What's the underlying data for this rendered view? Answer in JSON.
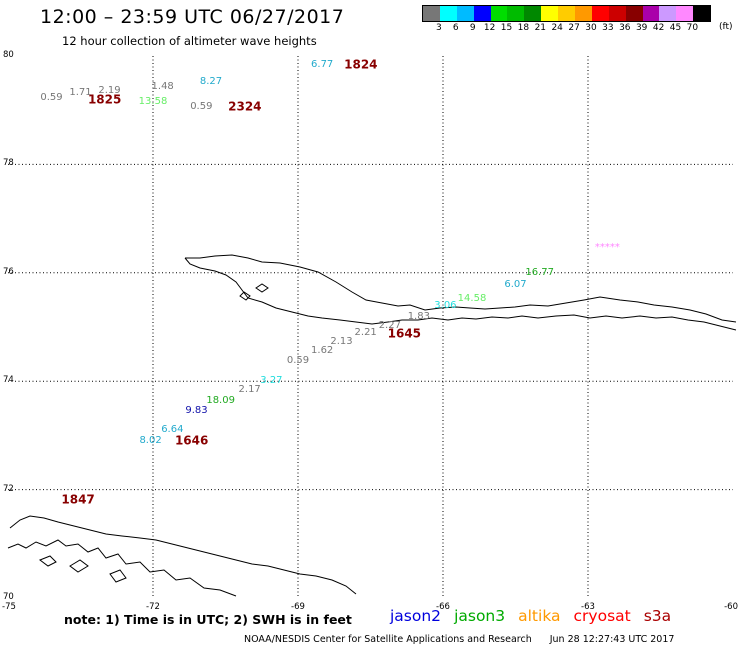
{
  "header": {
    "title": "12:00 – 23:59 UTC 06/27/2017",
    "subtitle": "12 hour collection of altimeter wave heights"
  },
  "legend": {
    "colors": [
      "#777777",
      "#00ffff",
      "#00bbff",
      "#0000ff",
      "#00dd00",
      "#00bb00",
      "#008800",
      "#ffff00",
      "#ffcc00",
      "#ff9900",
      "#ff0000",
      "#cc0000",
      "#880000",
      "#aa00aa",
      "#cc99ff",
      "#ff88ff",
      "#000000"
    ],
    "labels": [
      "3",
      "6",
      "9",
      "12",
      "15",
      "18",
      "21",
      "24",
      "27",
      "30",
      "33",
      "36",
      "39",
      "42",
      "45",
      "70"
    ],
    "unit": "(ft)"
  },
  "axes": {
    "lat_labels": [
      "80",
      "78",
      "76",
      "74",
      "72",
      "70"
    ],
    "lon_labels": [
      "-75",
      "-72",
      "-69",
      "-66",
      "-63",
      "-60"
    ]
  },
  "observations": [
    {
      "text": "6.77",
      "color": "#22aacc",
      "lon": -68.5,
      "lat": 79.83
    },
    {
      "text": "8.27",
      "color": "#22aacc",
      "lon": -70.8,
      "lat": 79.52
    },
    {
      "text": "1.48",
      "color": "#777777",
      "lon": -71.8,
      "lat": 79.42
    },
    {
      "text": "2.19",
      "color": "#777777",
      "lon": -72.9,
      "lat": 79.35
    },
    {
      "text": "1.71",
      "color": "#777777",
      "lon": -73.5,
      "lat": 79.32
    },
    {
      "text": "0.59",
      "color": "#777777",
      "lon": -74.1,
      "lat": 79.23
    },
    {
      "text": "13.58",
      "color": "#66ee66",
      "lon": -72.0,
      "lat": 79.15
    },
    {
      "text": "0.59",
      "color": "#777777",
      "lon": -71.0,
      "lat": 79.05
    },
    {
      "text": "16.77",
      "color": "#22aa22",
      "lon": -64.0,
      "lat": 76.0
    },
    {
      "text": "6.07",
      "color": "#22aacc",
      "lon": -64.5,
      "lat": 75.77
    },
    {
      "text": "14.58",
      "color": "#66ee66",
      "lon": -65.4,
      "lat": 75.52
    },
    {
      "text": "3.06",
      "color": "#22dddd",
      "lon": -65.95,
      "lat": 75.38
    },
    {
      "text": "1.83",
      "color": "#777777",
      "lon": -66.5,
      "lat": 75.18
    },
    {
      "text": "2.27",
      "color": "#777777",
      "lon": -67.1,
      "lat": 75.02
    },
    {
      "text": "2.21",
      "color": "#777777",
      "lon": -67.6,
      "lat": 74.89
    },
    {
      "text": "2.13",
      "color": "#777777",
      "lon": -68.1,
      "lat": 74.72
    },
    {
      "text": "1.62",
      "color": "#777777",
      "lon": -68.5,
      "lat": 74.55
    },
    {
      "text": "0.59",
      "color": "#777777",
      "lon": -69.0,
      "lat": 74.38
    },
    {
      "text": "3.27",
      "color": "#22dddd",
      "lon": -69.55,
      "lat": 74.0
    },
    {
      "text": "2.17",
      "color": "#777777",
      "lon": -70.0,
      "lat": 73.84
    },
    {
      "text": "18.09",
      "color": "#22aa22",
      "lon": -70.6,
      "lat": 73.64
    },
    {
      "text": "9.83",
      "color": "#1111aa",
      "lon": -71.1,
      "lat": 73.45
    },
    {
      "text": "6.64",
      "color": "#22aacc",
      "lon": -71.6,
      "lat": 73.1
    },
    {
      "text": "8.02",
      "color": "#22aacc",
      "lon": -72.05,
      "lat": 72.9
    }
  ],
  "passes": [
    {
      "text": "1824",
      "color": "#880000",
      "lon": -67.7,
      "lat": 79.83
    },
    {
      "text": "1825",
      "color": "#880000",
      "lon": -73.0,
      "lat": 79.18
    },
    {
      "text": "2324",
      "color": "#880000",
      "lon": -70.1,
      "lat": 79.05
    },
    {
      "text": "1645",
      "color": "#880000",
      "lon": -66.8,
      "lat": 74.87
    },
    {
      "text": "1646",
      "color": "#880000",
      "lon": -71.2,
      "lat": 72.9
    },
    {
      "text": "1847",
      "color": "#880000",
      "lon": -73.55,
      "lat": 71.8
    }
  ],
  "track_marker": {
    "text": "*****",
    "color": "#ff88ff",
    "lon": -62.6,
    "lat": 76.45
  },
  "note": "note: 1) Time is in UTC; 2) SWH is in feet",
  "satellites": [
    {
      "name": "jason2",
      "color": "#0000dd"
    },
    {
      "name": "jason3",
      "color": "#00aa00"
    },
    {
      "name": "altika",
      "color": "#ff9900"
    },
    {
      "name": "cryosat",
      "color": "#ff0000"
    },
    {
      "name": "s3a",
      "color": "#aa0000"
    }
  ],
  "footer": {
    "agency": "NOAA/NESDIS Center for Satellite Applications and Research",
    "timestamp": "Jun 28 12:27:43 UTC 2017"
  }
}
